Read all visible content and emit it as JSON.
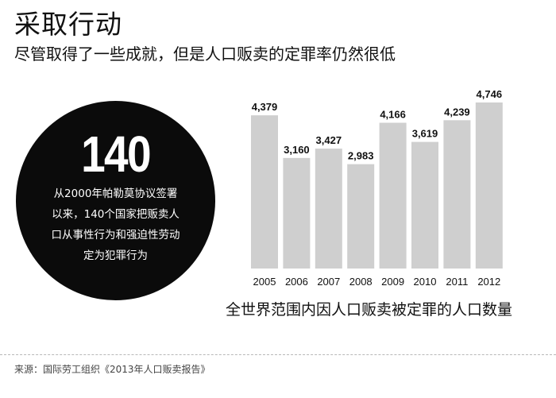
{
  "header": {
    "title": "采取行动",
    "subtitle": "尽管取得了一些成就，但是人口贩卖的定罪率仍然很低"
  },
  "callout": {
    "number": "140",
    "lines": [
      "从2000年帕勒莫协议签署",
      "以来，140个国家把贩卖人",
      "口从事性行为和强迫性劳动",
      "定为犯罪行为"
    ]
  },
  "chart_data": {
    "type": "bar",
    "categories": [
      "2005",
      "2006",
      "2007",
      "2008",
      "2009",
      "2010",
      "2011",
      "2012"
    ],
    "values": [
      4379,
      3160,
      3427,
      2983,
      4166,
      3619,
      4239,
      4746
    ],
    "value_labels": [
      "4,379",
      "3,160",
      "3,427",
      "2,983",
      "4,166",
      "3,619",
      "4,239",
      "4,746"
    ],
    "title": "全世界范围内因人口贩卖被定罪的人口数量",
    "xlabel": "",
    "ylabel": "",
    "ylim": [
      0,
      4746
    ],
    "grid": false,
    "legend": "none",
    "bar_color": "#cfcfcf"
  },
  "footer": {
    "source": "来源：国际劳工组织《2013年人口贩卖报告》"
  }
}
